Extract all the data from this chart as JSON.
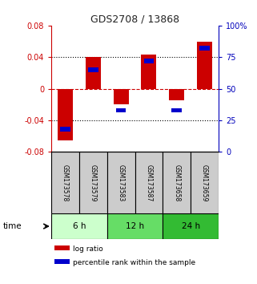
{
  "title": "GDS2708 / 13868",
  "samples": [
    "GSM173578",
    "GSM173579",
    "GSM173583",
    "GSM173587",
    "GSM173658",
    "GSM173659"
  ],
  "log_ratios": [
    -0.065,
    0.04,
    -0.02,
    0.043,
    -0.015,
    0.06
  ],
  "percentile_ranks": [
    18,
    65,
    33,
    72,
    33,
    82
  ],
  "ylim_left": [
    -0.08,
    0.08
  ],
  "ylim_right": [
    0,
    100
  ],
  "yticks_left": [
    -0.08,
    -0.04,
    0,
    0.04,
    0.08
  ],
  "yticks_right": [
    0,
    25,
    50,
    75,
    100
  ],
  "ytick_labels_left": [
    "-0.08",
    "-0.04",
    "0",
    "0.04",
    "0.08"
  ],
  "ytick_labels_right": [
    "0",
    "25",
    "50",
    "75",
    "100%"
  ],
  "hlines_dotted": [
    -0.04,
    0.04
  ],
  "hline_red_dashed": 0,
  "time_groups": [
    {
      "label": "6 h",
      "start": 0,
      "end": 2,
      "color": "#ccffcc"
    },
    {
      "label": "12 h",
      "start": 2,
      "end": 4,
      "color": "#66dd66"
    },
    {
      "label": "24 h",
      "start": 4,
      "end": 6,
      "color": "#33bb33"
    }
  ],
  "bar_color_red": "#cc0000",
  "bar_color_blue": "#0000cc",
  "bar_width": 0.55,
  "sample_box_color": "#cccccc",
  "legend_red_label": "log ratio",
  "legend_blue_label": "percentile rank within the sample",
  "title_color": "#222222",
  "left_axis_color": "#cc0000",
  "right_axis_color": "#0000bb"
}
